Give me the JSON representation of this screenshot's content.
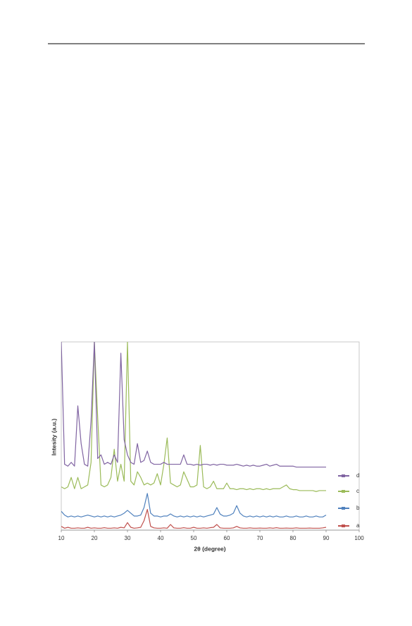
{
  "chart_data": {
    "type": "line",
    "x_label": "2θ (degree)",
    "y_label": "Intesity  (a.u.)",
    "x": [
      10,
      11,
      12,
      13,
      14,
      15,
      16,
      17,
      18,
      19,
      20,
      21,
      22,
      23,
      24,
      25,
      26,
      27,
      28,
      29,
      30,
      31,
      32,
      33,
      34,
      35,
      36,
      37,
      38,
      39,
      40,
      41,
      42,
      43,
      44,
      45,
      46,
      47,
      48,
      49,
      50,
      51,
      52,
      53,
      54,
      55,
      56,
      57,
      58,
      59,
      60,
      61,
      62,
      63,
      64,
      65,
      66,
      67,
      68,
      69,
      70,
      71,
      72,
      73,
      74,
      75,
      76,
      77,
      78,
      79,
      80,
      81,
      82,
      83,
      84,
      85,
      86,
      87,
      88,
      89,
      90
    ],
    "xlim": [
      10,
      100
    ],
    "xticks": [
      10,
      20,
      30,
      40,
      50,
      60,
      70,
      80,
      90,
      100
    ],
    "ylim": [
      0,
      100
    ],
    "legend_order": [
      3,
      2,
      1,
      0
    ],
    "series": [
      {
        "name": "a",
        "color": "#c0504d",
        "values": [
          2,
          1,
          1.5,
          1,
          1,
          1.2,
          1,
          1,
          1.5,
          1,
          1.2,
          1,
          1,
          1.3,
          1,
          1,
          1.2,
          1,
          1.5,
          1.2,
          4,
          1.5,
          1,
          1.2,
          1.5,
          5,
          11,
          2,
          1.2,
          1,
          1,
          1.2,
          1,
          3,
          1.2,
          1,
          1,
          1.3,
          1,
          1,
          1.5,
          1,
          1,
          1.2,
          1,
          1.3,
          1.5,
          3,
          1.2,
          1,
          1,
          1,
          1.2,
          2,
          1.2,
          1,
          1,
          1.2,
          1,
          1,
          1.1,
          1,
          1,
          1.2,
          1,
          1.3,
          1,
          1,
          1.1,
          1,
          1,
          1.2,
          1,
          1,
          1,
          1.1,
          1,
          1,
          1,
          1.2,
          1.5
        ]
      },
      {
        "name": "b",
        "color": "#4f81bd",
        "values": [
          10,
          8,
          7,
          7.5,
          7,
          7.5,
          7,
          7.5,
          8,
          7.5,
          7,
          7.5,
          7,
          7.5,
          7,
          7.5,
          7,
          7.5,
          8,
          9,
          10.5,
          9,
          7.5,
          7.5,
          8,
          12,
          19.5,
          9,
          7.5,
          7.5,
          7,
          7.5,
          7.5,
          8.6,
          7.5,
          7,
          7.5,
          7,
          7.5,
          7,
          7.5,
          7,
          7.5,
          7,
          7.5,
          8,
          8.5,
          12,
          8.5,
          7.5,
          7.5,
          8,
          9,
          13,
          9,
          7.5,
          7,
          7.5,
          7,
          7.5,
          7,
          7.5,
          7,
          7.5,
          7,
          7.5,
          7,
          7,
          7.5,
          7,
          7,
          7.5,
          7,
          7,
          7.5,
          7,
          7,
          7.5,
          7,
          7,
          8
        ]
      },
      {
        "name": "c",
        "color": "#9bbb59",
        "values": [
          23,
          22,
          23,
          28,
          22,
          28,
          22,
          23,
          24,
          36,
          100,
          60,
          24,
          23,
          24,
          28,
          43,
          26,
          35,
          26,
          100,
          26,
          24,
          31,
          28,
          24,
          25,
          24,
          25,
          30,
          24,
          35,
          49,
          25,
          24,
          23,
          24,
          31,
          27,
          23,
          23,
          24,
          45,
          23,
          22,
          23,
          26,
          22,
          22,
          22,
          25,
          22,
          22,
          21.5,
          22,
          22,
          21.5,
          22,
          21.5,
          22,
          22,
          21.5,
          22,
          21.5,
          22,
          22,
          22,
          23,
          24,
          22,
          21.5,
          21.5,
          21,
          21,
          21,
          21,
          21,
          20.5,
          21,
          21,
          21
        ]
      },
      {
        "name": "d",
        "color": "#8064a2",
        "values": [
          100,
          35,
          34,
          36,
          34,
          66,
          46,
          35,
          34,
          58,
          100,
          38,
          40,
          35,
          36,
          35,
          40,
          36,
          94,
          48,
          40,
          36,
          35,
          46,
          36,
          37,
          42,
          36,
          35,
          35,
          35,
          36,
          35,
          35,
          35,
          35,
          35,
          40,
          35,
          35,
          34.5,
          35,
          34.5,
          35,
          35,
          34.5,
          35,
          34.5,
          35,
          35,
          34.5,
          34.5,
          34.5,
          35,
          34.5,
          34,
          34.5,
          34,
          34.5,
          34,
          34,
          34.5,
          35,
          34,
          34.5,
          35,
          34,
          34,
          34,
          34,
          34,
          33.5,
          33.5,
          33.5,
          33.5,
          33.5,
          33.5,
          33.5,
          33.5,
          33.5,
          33.5
        ]
      }
    ]
  }
}
